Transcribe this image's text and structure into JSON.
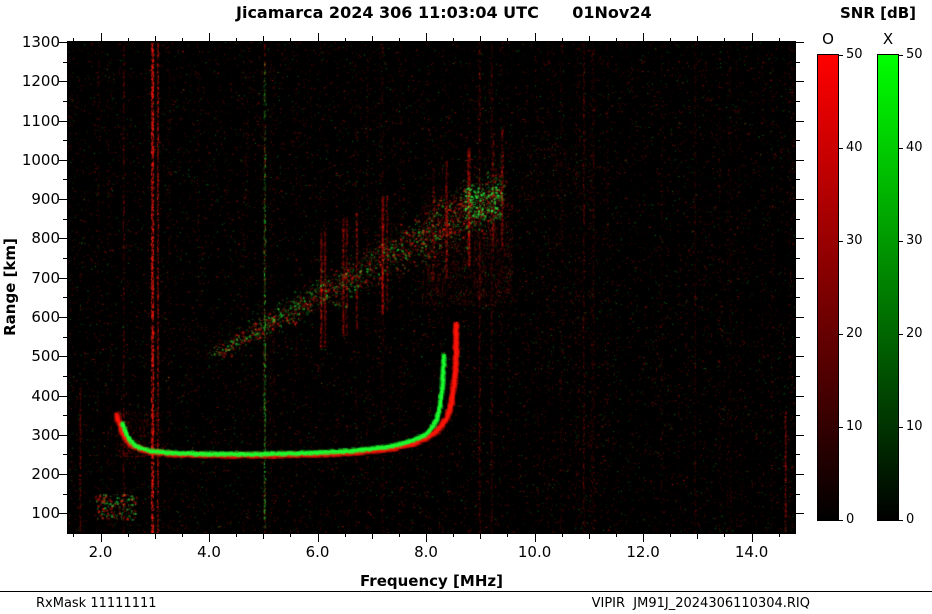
{
  "title": "Jicamarca 2024 306 11:03:04 UTC      01Nov24",
  "colorbar": {
    "title": "SNR [dB]",
    "min": 0,
    "max": 50,
    "ticks": [
      0,
      10,
      20,
      30,
      40,
      50
    ],
    "bars": [
      {
        "label": "O",
        "color": "#ff0000"
      },
      {
        "label": "X",
        "color": "#00ff00"
      }
    ]
  },
  "footer": {
    "left": "RxMask 11111111",
    "right": "VIPIR  JM91J_2024306110304.RIQ"
  },
  "chart_data": {
    "type": "heatmap",
    "title": "Jicamarca ionogram, 2024 day 306, 11:03:04 UTC (01Nov24)",
    "x_axis": {
      "label": "Frequency [MHz]",
      "min": 1.4,
      "max": 14.8,
      "ticks": [
        2,
        4,
        6,
        8,
        10,
        12,
        14
      ],
      "tick_labels": [
        "2.0",
        "4.0",
        "6.0",
        "8.0",
        "10.0",
        "12.0",
        "14.0"
      ]
    },
    "y_axis": {
      "label": "Range [km]",
      "min": 50,
      "max": 1300,
      "ticks": [
        100,
        200,
        300,
        400,
        500,
        600,
        700,
        800,
        900,
        1000,
        1100,
        1200,
        1300
      ]
    },
    "legend": {
      "O_mode": "red, SNR 0-50 dB",
      "X_mode": "green, SNR 0-50 dB"
    },
    "o_trace_mhz_km": [
      [
        2.3,
        350
      ],
      [
        2.4,
        305
      ],
      [
        2.55,
        275
      ],
      [
        2.8,
        260
      ],
      [
        3.1,
        253
      ],
      [
        3.6,
        249
      ],
      [
        4.4,
        247
      ],
      [
        5.4,
        248
      ],
      [
        6.2,
        251
      ],
      [
        6.9,
        257
      ],
      [
        7.4,
        266
      ],
      [
        7.8,
        279
      ],
      [
        8.05,
        295
      ],
      [
        8.25,
        315
      ],
      [
        8.38,
        342
      ],
      [
        8.47,
        380
      ],
      [
        8.52,
        430
      ],
      [
        8.55,
        490
      ],
      [
        8.56,
        585
      ]
    ],
    "x_trace_mhz_km": [
      [
        2.4,
        330
      ],
      [
        2.5,
        295
      ],
      [
        2.65,
        270
      ],
      [
        2.9,
        259
      ],
      [
        3.3,
        254
      ],
      [
        4.0,
        251
      ],
      [
        5.0,
        251
      ],
      [
        5.9,
        254
      ],
      [
        6.5,
        258
      ],
      [
        7.0,
        264
      ],
      [
        7.4,
        272
      ],
      [
        7.7,
        283
      ],
      [
        7.95,
        297
      ],
      [
        8.1,
        315
      ],
      [
        8.2,
        340
      ],
      [
        8.26,
        375
      ],
      [
        8.3,
        420
      ],
      [
        8.32,
        465
      ],
      [
        8.33,
        505
      ]
    ],
    "spread_f": {
      "f_start": 4.0,
      "f_end": 9.4,
      "r_start": 500,
      "r_end": 920,
      "points": 3200,
      "green_fraction": 0.4,
      "cloud": {
        "f0": 7.9,
        "f1": 9.6,
        "r0": 630,
        "r1": 910,
        "points": 2000
      },
      "tail": {
        "f0": 9.4,
        "f1": 11.1,
        "r0": 870,
        "r1": 1030,
        "points": 260
      },
      "bright_green_cluster": {
        "f0": 8.7,
        "f1": 9.4,
        "r0": 850,
        "r1": 940,
        "points": 220
      }
    },
    "interference_lines": [
      {
        "f": 2.95,
        "color": "red",
        "alpha": 0.9,
        "width": 2.5,
        "r0": 50,
        "r1": 1300,
        "density": 2.5
      },
      {
        "f": 3.05,
        "color": "red",
        "alpha": 0.5,
        "width": 1.5,
        "r0": 50,
        "r1": 1300,
        "density": 1.5
      },
      {
        "f": 2.42,
        "color": "red",
        "alpha": 0.3,
        "width": 1.5,
        "r0": 50,
        "r1": 1300,
        "density": 0.8
      },
      {
        "f": 5.02,
        "color": "green",
        "alpha": 0.55,
        "width": 2,
        "r0": 60,
        "r1": 1250,
        "density": 0.9
      },
      {
        "f": 5.02,
        "color": "red",
        "alpha": 0.3,
        "width": 1.5,
        "r0": 50,
        "r1": 1300,
        "density": 0.6
      },
      {
        "f": 1.62,
        "color": "red",
        "alpha": 0.35,
        "width": 1.5,
        "r0": 50,
        "r1": 420,
        "density": 1.2
      },
      {
        "f": 8.98,
        "color": "red",
        "alpha": 0.3,
        "width": 1.5,
        "r0": 50,
        "r1": 1300,
        "density": 0.9
      },
      {
        "f": 9.2,
        "color": "red",
        "alpha": 0.25,
        "width": 1.5,
        "r0": 50,
        "r1": 1300,
        "density": 0.8
      },
      {
        "f": 10.9,
        "color": "red",
        "alpha": 0.3,
        "width": 1.5,
        "r0": 50,
        "r1": 1300,
        "density": 0.8
      },
      {
        "f": 11.08,
        "color": "red",
        "alpha": 0.2,
        "width": 1.5,
        "r0": 50,
        "r1": 1300,
        "density": 0.6
      },
      {
        "f": 12.95,
        "color": "red",
        "alpha": 0.2,
        "width": 1.5,
        "r0": 50,
        "r1": 1300,
        "density": 0.6
      },
      {
        "f": 13.6,
        "color": "red",
        "alpha": 0.15,
        "width": 1.5,
        "r0": 50,
        "r1": 1300,
        "density": 0.5
      },
      {
        "f": 14.62,
        "color": "red",
        "alpha": 0.4,
        "width": 1.8,
        "r0": 50,
        "r1": 360,
        "density": 1.5
      }
    ],
    "patches": [
      {
        "f0": 1.9,
        "f1": 2.65,
        "r0": 85,
        "r1": 150,
        "green_fraction": 0.4,
        "points": 260
      }
    ],
    "noise": {
      "red_dots": 15000,
      "green_dots": 4500,
      "column_count": 55
    }
  }
}
